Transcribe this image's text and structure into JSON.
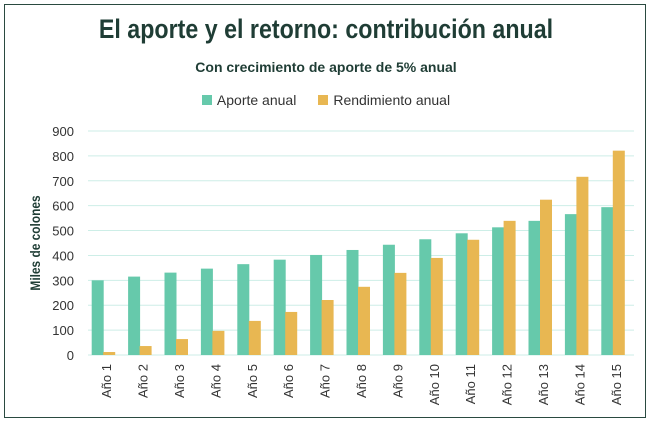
{
  "chart_data": {
    "type": "bar",
    "title": "El aporte y el retorno: contribución anual",
    "subtitle": "Con crecimiento de aporte de 5% anual",
    "xlabel": "",
    "ylabel": "Miles de colones",
    "ylim": [
      0,
      900
    ],
    "yticks": [
      0,
      100,
      200,
      300,
      400,
      500,
      600,
      700,
      800,
      900
    ],
    "grid": true,
    "legend_position": "top",
    "categories": [
      "Año 1",
      "Año 2",
      "Año 3",
      "Año 4",
      "Año 5",
      "Año 6",
      "Año 7",
      "Año 8",
      "Año 9",
      "Año 10",
      "Año 11",
      "Año 12",
      "Año 13",
      "Año 14",
      "Año 15"
    ],
    "series": [
      {
        "name": "Aporte anual",
        "color": "#66c9ab",
        "values": [
          300,
          315,
          331,
          347,
          365,
          383,
          402,
          422,
          443,
          465,
          489,
          513,
          539,
          566,
          594
        ]
      },
      {
        "name": "Rendimiento anual",
        "color": "#e8b752",
        "values": [
          12,
          36,
          64,
          97,
          137,
          173,
          221,
          274,
          330,
          390,
          463,
          539,
          624,
          716,
          821
        ]
      }
    ]
  }
}
